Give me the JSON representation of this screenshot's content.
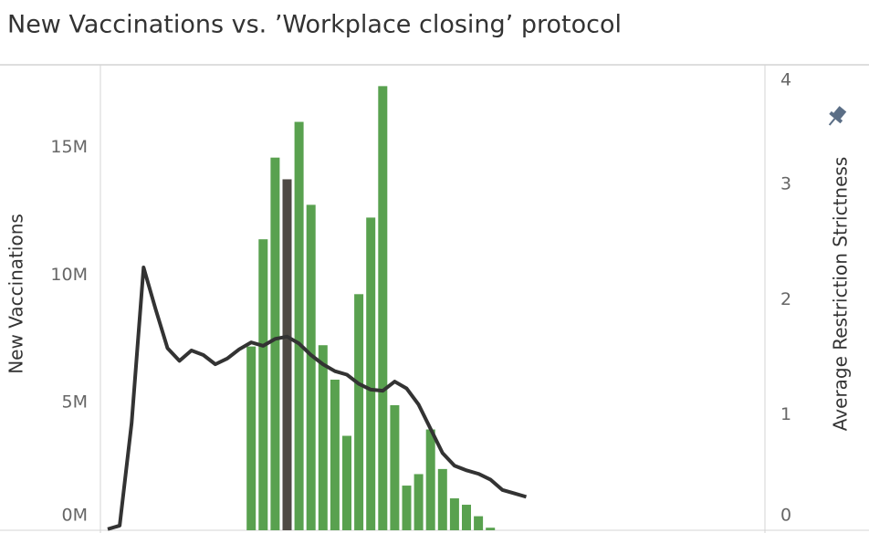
{
  "chart_data": {
    "type": "bar-line",
    "title": "New Vaccinations vs. ’Workplace closing’ protocol",
    "ylabel": "New Vaccinations",
    "y2label": "Average Restriction Strictness",
    "categories": [
      null,
      null,
      null,
      null,
      null,
      null,
      null,
      null,
      null,
      null,
      null,
      null,
      null,
      null,
      null,
      null,
      null,
      null,
      null,
      null,
      null,
      null,
      null,
      null,
      null,
      null,
      null,
      null,
      null,
      null,
      null,
      null,
      null,
      null,
      null,
      null
    ],
    "series": [
      {
        "name": "New Vaccinations",
        "type": "bar",
        "color": "#59a14f",
        "highlight_index": 15,
        "highlight_color": "#4e4a44",
        "values": [
          null,
          null,
          null,
          null,
          null,
          null,
          null,
          null,
          null,
          null,
          null,
          null,
          7200000,
          11400000,
          14600000,
          13750000,
          16000000,
          12750000,
          7250000,
          5900000,
          3700000,
          9250000,
          12250000,
          17400000,
          4900000,
          1750000,
          2200000,
          3950000,
          2400000,
          1250000,
          1000000,
          550000,
          100000,
          null,
          null,
          null
        ]
      },
      {
        "name": "Average Restriction Strictness",
        "type": "line",
        "axis": "y2",
        "color": "#333333",
        "values": [
          0.01,
          0.04,
          0.93,
          2.28,
          1.92,
          1.58,
          1.47,
          1.56,
          1.52,
          1.44,
          1.49,
          1.57,
          1.63,
          1.6,
          1.66,
          1.68,
          1.62,
          1.52,
          1.44,
          1.38,
          1.35,
          1.27,
          1.22,
          1.21,
          1.29,
          1.23,
          1.09,
          0.88,
          0.67,
          0.56,
          0.52,
          0.49,
          0.44,
          0.35,
          0.32,
          0.29
        ]
      }
    ],
    "ylim": [
      0,
      18200000
    ],
    "yticks": [
      {
        "value": 0,
        "label": "0M"
      },
      {
        "value": 5000000,
        "label": "5M"
      },
      {
        "value": 10000000,
        "label": "10M"
      },
      {
        "value": 15000000,
        "label": "15M"
      }
    ],
    "y2lim": [
      0,
      4.03
    ],
    "y2ticks": [
      0,
      1,
      2,
      3,
      4
    ],
    "grid": false
  }
}
